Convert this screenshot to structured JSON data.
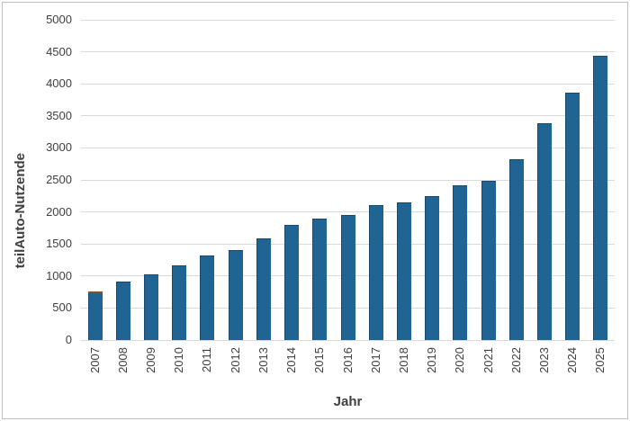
{
  "chart_data": {
    "type": "bar",
    "title": "",
    "xlabel": "Jahr",
    "ylabel": "teilAuto-Nutzende",
    "categories": [
      "2007",
      "2008",
      "2009",
      "2010",
      "2011",
      "2012",
      "2013",
      "2014",
      "2015",
      "2016",
      "2017",
      "2018",
      "2019",
      "2020",
      "2021",
      "2022",
      "2023",
      "2024",
      "2025"
    ],
    "values": [
      760,
      910,
      1020,
      1160,
      1320,
      1410,
      1590,
      1800,
      1890,
      1950,
      2100,
      2150,
      2250,
      2420,
      2490,
      2830,
      3380,
      3860,
      4440
    ],
    "accent_segment": {
      "category": "2007",
      "value": 25,
      "color": "#8c4d21"
    },
    "ylim": [
      0,
      5000
    ],
    "ytick_step": 500,
    "yticks": [
      0,
      500,
      1000,
      1500,
      2000,
      2500,
      3000,
      3500,
      4000,
      4500,
      5000
    ],
    "grid": true,
    "legend": "none",
    "colors": {
      "bar_fill": "#1f6492",
      "bar_border": "#17496f",
      "gridline": "#d9d9d9",
      "baseline": "#d9d9d9",
      "text": "#404040",
      "frame_border": "#bfbfbf",
      "background": "#ffffff"
    }
  }
}
